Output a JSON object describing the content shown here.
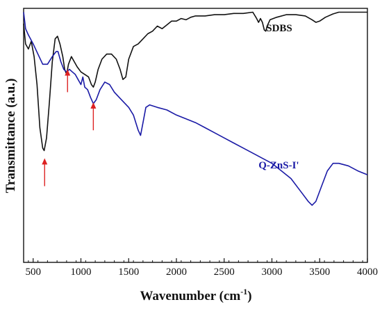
{
  "chart_data": {
    "type": "line",
    "xlabel": "Wavenumber (cm",
    "xlabel_sup": "-1",
    "xlabel_close": ")",
    "ylabel": "Transmittance (a.u.)",
    "xlim": [
      400,
      4000
    ],
    "ylim": [
      0,
      1
    ],
    "y_ticks_labeled": false,
    "grid": false,
    "x_ticks": [
      500,
      1000,
      1500,
      2000,
      2500,
      3000,
      3500,
      4000
    ],
    "x_tick_labels": [
      "500",
      "1000",
      "1500",
      "2000",
      "2500",
      "3000",
      "3500",
      "4000"
    ],
    "series": [
      {
        "name": "SDBS",
        "color": "#111111",
        "points": [
          [
            400,
            0.94
          ],
          [
            420,
            0.86
          ],
          [
            450,
            0.84
          ],
          [
            480,
            0.87
          ],
          [
            510,
            0.81
          ],
          [
            540,
            0.7
          ],
          [
            570,
            0.53
          ],
          [
            600,
            0.45
          ],
          [
            615,
            0.44
          ],
          [
            640,
            0.49
          ],
          [
            670,
            0.63
          ],
          [
            700,
            0.79
          ],
          [
            730,
            0.88
          ],
          [
            755,
            0.89
          ],
          [
            780,
            0.86
          ],
          [
            810,
            0.81
          ],
          [
            830,
            0.76
          ],
          [
            850,
            0.74
          ],
          [
            870,
            0.78
          ],
          [
            900,
            0.81
          ],
          [
            930,
            0.79
          ],
          [
            960,
            0.77
          ],
          [
            1000,
            0.75
          ],
          [
            1040,
            0.74
          ],
          [
            1080,
            0.73
          ],
          [
            1110,
            0.7
          ],
          [
            1130,
            0.69
          ],
          [
            1150,
            0.71
          ],
          [
            1180,
            0.76
          ],
          [
            1220,
            0.8
          ],
          [
            1270,
            0.82
          ],
          [
            1320,
            0.82
          ],
          [
            1370,
            0.8
          ],
          [
            1410,
            0.76
          ],
          [
            1440,
            0.72
          ],
          [
            1470,
            0.73
          ],
          [
            1500,
            0.8
          ],
          [
            1550,
            0.85
          ],
          [
            1600,
            0.86
          ],
          [
            1650,
            0.88
          ],
          [
            1700,
            0.9
          ],
          [
            1750,
            0.91
          ],
          [
            1800,
            0.93
          ],
          [
            1850,
            0.92
          ],
          [
            1900,
            0.935
          ],
          [
            1950,
            0.95
          ],
          [
            2000,
            0.95
          ],
          [
            2050,
            0.96
          ],
          [
            2100,
            0.955
          ],
          [
            2150,
            0.965
          ],
          [
            2200,
            0.97
          ],
          [
            2300,
            0.97
          ],
          [
            2400,
            0.975
          ],
          [
            2500,
            0.975
          ],
          [
            2600,
            0.98
          ],
          [
            2700,
            0.98
          ],
          [
            2800,
            0.985
          ],
          [
            2840,
            0.96
          ],
          [
            2860,
            0.945
          ],
          [
            2880,
            0.96
          ],
          [
            2900,
            0.945
          ],
          [
            2920,
            0.915
          ],
          [
            2935,
            0.91
          ],
          [
            2950,
            0.93
          ],
          [
            2980,
            0.955
          ],
          [
            3050,
            0.965
          ],
          [
            3150,
            0.975
          ],
          [
            3250,
            0.975
          ],
          [
            3350,
            0.97
          ],
          [
            3420,
            0.955
          ],
          [
            3460,
            0.945
          ],
          [
            3500,
            0.95
          ],
          [
            3560,
            0.965
          ],
          [
            3640,
            0.978
          ],
          [
            3700,
            0.985
          ],
          [
            3800,
            0.985
          ],
          [
            3900,
            0.985
          ],
          [
            4000,
            0.985
          ]
        ]
      },
      {
        "name": "Q-ZnS-I'",
        "color": "#1a1aa6",
        "points": [
          [
            400,
            0.985
          ],
          [
            420,
            0.92
          ],
          [
            450,
            0.895
          ],
          [
            500,
            0.86
          ],
          [
            550,
            0.82
          ],
          [
            600,
            0.78
          ],
          [
            650,
            0.78
          ],
          [
            700,
            0.81
          ],
          [
            740,
            0.83
          ],
          [
            760,
            0.83
          ],
          [
            790,
            0.79
          ],
          [
            820,
            0.76
          ],
          [
            850,
            0.75
          ],
          [
            880,
            0.76
          ],
          [
            910,
            0.75
          ],
          [
            940,
            0.74
          ],
          [
            970,
            0.72
          ],
          [
            1000,
            0.7
          ],
          [
            1020,
            0.73
          ],
          [
            1040,
            0.69
          ],
          [
            1070,
            0.68
          ],
          [
            1100,
            0.65
          ],
          [
            1130,
            0.625
          ],
          [
            1160,
            0.64
          ],
          [
            1200,
            0.68
          ],
          [
            1250,
            0.71
          ],
          [
            1300,
            0.7
          ],
          [
            1350,
            0.67
          ],
          [
            1400,
            0.65
          ],
          [
            1450,
            0.63
          ],
          [
            1500,
            0.61
          ],
          [
            1550,
            0.58
          ],
          [
            1600,
            0.52
          ],
          [
            1625,
            0.5
          ],
          [
            1650,
            0.55
          ],
          [
            1680,
            0.61
          ],
          [
            1720,
            0.62
          ],
          [
            1800,
            0.61
          ],
          [
            1900,
            0.6
          ],
          [
            2000,
            0.58
          ],
          [
            2100,
            0.565
          ],
          [
            2200,
            0.55
          ],
          [
            2300,
            0.53
          ],
          [
            2400,
            0.51
          ],
          [
            2500,
            0.49
          ],
          [
            2600,
            0.47
          ],
          [
            2700,
            0.45
          ],
          [
            2800,
            0.43
          ],
          [
            2900,
            0.41
          ],
          [
            3000,
            0.39
          ],
          [
            3100,
            0.36
          ],
          [
            3200,
            0.33
          ],
          [
            3300,
            0.28
          ],
          [
            3380,
            0.24
          ],
          [
            3420,
            0.225
          ],
          [
            3460,
            0.24
          ],
          [
            3520,
            0.3
          ],
          [
            3580,
            0.36
          ],
          [
            3640,
            0.39
          ],
          [
            3700,
            0.39
          ],
          [
            3800,
            0.38
          ],
          [
            3900,
            0.36
          ],
          [
            4000,
            0.345
          ]
        ]
      }
    ],
    "series_labels": [
      {
        "text": "SDBS",
        "at": [
          2940,
          0.91
        ],
        "color": "#111111"
      },
      {
        "text": "Q-ZnS-I'",
        "at": [
          2860,
          0.37
        ],
        "color": "#1a1aa6"
      }
    ],
    "annotations": [
      {
        "type": "arrow",
        "color": "#dd2222",
        "x": 620,
        "from_y": 0.3,
        "to_y": 0.41
      },
      {
        "type": "arrow",
        "color": "#dd2222",
        "x": 860,
        "from_y": 0.67,
        "to_y": 0.76
      },
      {
        "type": "arrow",
        "color": "#dd2222",
        "x": 1130,
        "from_y": 0.52,
        "to_y": 0.63
      }
    ]
  }
}
